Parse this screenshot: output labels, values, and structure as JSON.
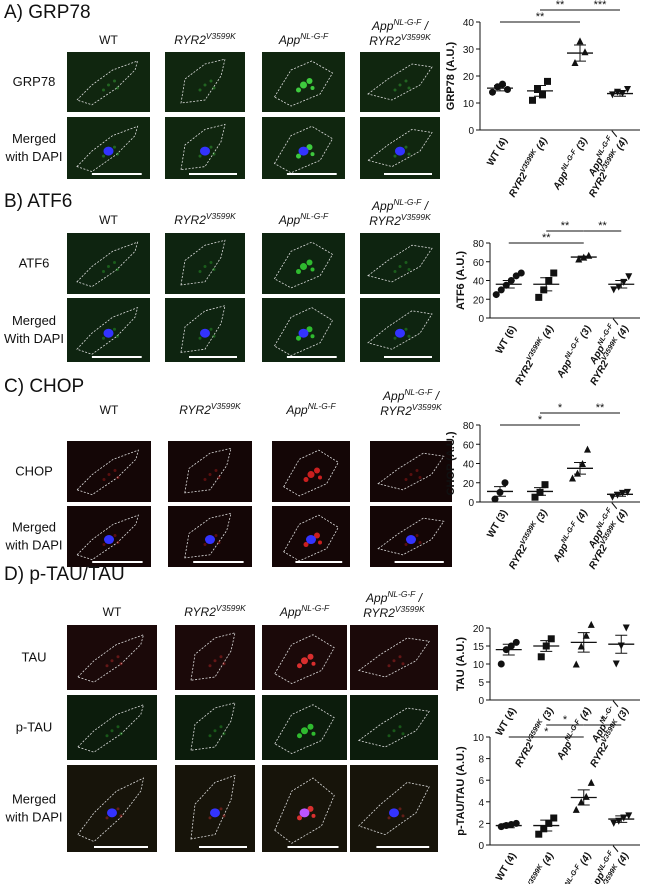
{
  "panels": [
    {
      "title": "A) GRP78",
      "columns": [
        [
          [
            {
              "text": "WT"
            }
          ]
        ],
        [
          [
            {
              "text": "RYR2"
            },
            {
              "sup": "V3599K"
            }
          ]
        ],
        [
          [
            {
              "text": "App"
            },
            {
              "sup": "NL-G-F"
            }
          ]
        ],
        [
          [
            {
              "text": "App"
            },
            {
              "sup": "NL-G-F"
            },
            {
              "text": " /"
            }
          ],
          [
            {
              "text": "RYR2"
            },
            {
              "sup": "V3599K"
            }
          ]
        ]
      ],
      "rows": [
        [
          "GRP78"
        ],
        [
          "Merged",
          "with DAPI"
        ]
      ]
    },
    {
      "title": "B) ATF6",
      "columns": [
        [
          [
            {
              "text": "WT"
            }
          ]
        ],
        [
          [
            {
              "text": "RYR2"
            },
            {
              "sup": "V3599K"
            }
          ]
        ],
        [
          [
            {
              "text": "App"
            },
            {
              "sup": "NL-G-F"
            }
          ]
        ],
        [
          [
            {
              "text": "App"
            },
            {
              "sup": "NL-G-F"
            },
            {
              "text": " /"
            }
          ],
          [
            {
              "text": "RYR2"
            },
            {
              "sup": "V3599K"
            }
          ]
        ]
      ],
      "rows": [
        [
          "ATF6"
        ],
        [
          "Merged",
          "With DAPI"
        ]
      ]
    },
    {
      "title": "C) CHOP",
      "columns": [
        [
          [
            {
              "text": "WT"
            }
          ]
        ],
        [
          [
            {
              "text": "RYR2"
            },
            {
              "sup": "V3599K"
            }
          ]
        ],
        [
          [
            {
              "text": "App"
            },
            {
              "sup": "NL-G-F"
            }
          ]
        ],
        [
          [
            {
              "text": "App"
            },
            {
              "sup": "NL-G-F"
            },
            {
              "text": " /"
            }
          ],
          [
            {
              "text": "RYR2"
            },
            {
              "sup": "V3599K"
            }
          ]
        ]
      ],
      "rows": [
        [
          "CHOP"
        ],
        [
          "Merged",
          "with DAPI"
        ]
      ]
    },
    {
      "title": "D) p-TAU/TAU",
      "columns": [
        [
          [
            {
              "text": "WT"
            }
          ]
        ],
        [
          [
            {
              "text": "RYR2"
            },
            {
              "sup": "V3599K"
            }
          ]
        ],
        [
          [
            {
              "text": "App"
            },
            {
              "sup": "NL-G-F"
            }
          ]
        ],
        [
          [
            {
              "text": "App"
            },
            {
              "sup": "NL-G-F"
            },
            {
              "text": " /"
            }
          ],
          [
            {
              "text": "RYR2"
            },
            {
              "sup": "V3599K"
            }
          ]
        ]
      ],
      "rows": [
        [
          "TAU"
        ],
        [
          "p-TAU"
        ],
        [
          "Merged",
          "with DAPI"
        ]
      ]
    }
  ],
  "chart_data": [
    {
      "type": "dot",
      "ylabel": "GRP78 (A.U.)",
      "ylim": [
        0,
        40
      ],
      "yticks": [
        0,
        10,
        20,
        30,
        40
      ],
      "categories": [
        [
          [
            {
              "text": "WT"
            },
            {
              "text": " (4)"
            }
          ]
        ],
        [
          [
            {
              "text": "RYR2"
            },
            {
              "sup": "V3599K"
            },
            {
              "text": " (4)"
            }
          ]
        ],
        [
          [
            {
              "text": "App"
            },
            {
              "sup": "NL-G-F"
            },
            {
              "text": " (3)"
            }
          ]
        ],
        [
          [
            {
              "text": "App"
            },
            {
              "sup": "NL-G-F"
            },
            {
              "text": " /"
            }
          ],
          [
            {
              "text": "RYR2"
            },
            {
              "sup": "V3599K"
            },
            {
              "text": " (4)"
            }
          ]
        ]
      ],
      "groups": [
        {
          "points": [
            14,
            16,
            17,
            15
          ],
          "mean": 15.5,
          "sem": 1
        },
        {
          "points": [
            11,
            15,
            13,
            18
          ],
          "mean": 14.5,
          "sem": 2
        },
        {
          "points": [
            25,
            33,
            29
          ],
          "mean": 28.5,
          "sem": 3
        },
        {
          "points": [
            13,
            14,
            13.5,
            15
          ],
          "mean": 13.5,
          "sem": 1
        }
      ],
      "significance": [
        {
          "between": [
            0,
            2
          ],
          "label": "**"
        },
        {
          "between": [
            1,
            2
          ],
          "label": "**"
        },
        {
          "between": [
            2,
            3
          ],
          "label": "***"
        }
      ]
    },
    {
      "type": "dot",
      "ylabel": "ATF6 (A.U.)",
      "ylim": [
        0,
        80
      ],
      "yticks": [
        0,
        20,
        40,
        60,
        80
      ],
      "categories": [
        [
          [
            {
              "text": "WT"
            },
            {
              "text": " (6)"
            }
          ]
        ],
        [
          [
            {
              "text": "RYR2"
            },
            {
              "sup": "V3599K"
            },
            {
              "text": " (4)"
            }
          ]
        ],
        [
          [
            {
              "text": "App"
            },
            {
              "sup": "NL-G-F"
            },
            {
              "text": " (3)"
            }
          ]
        ],
        [
          [
            {
              "text": "App"
            },
            {
              "sup": "NL-G-F"
            },
            {
              "text": " /"
            }
          ],
          [
            {
              "text": "RYR2"
            },
            {
              "sup": "V3599K"
            },
            {
              "text": " (4)"
            }
          ]
        ]
      ],
      "groups": [
        {
          "points": [
            25,
            30,
            35,
            40,
            45,
            48
          ],
          "mean": 36,
          "sem": 4
        },
        {
          "points": [
            22,
            30,
            40,
            48
          ],
          "mean": 36,
          "sem": 7
        },
        {
          "points": [
            63,
            65,
            67
          ],
          "mean": 65,
          "sem": 1
        },
        {
          "points": [
            30,
            33,
            38,
            44
          ],
          "mean": 36,
          "sem": 4
        }
      ],
      "significance": [
        {
          "between": [
            0,
            2
          ],
          "label": "**"
        },
        {
          "between": [
            1,
            2
          ],
          "label": "**"
        },
        {
          "between": [
            2,
            3
          ],
          "label": "**"
        }
      ]
    },
    {
      "type": "dot",
      "ylabel": "CHOP (A.U.)",
      "ylim": [
        0,
        80
      ],
      "yticks": [
        0,
        20,
        40,
        60,
        80
      ],
      "categories": [
        [
          [
            {
              "text": "WT"
            },
            {
              "text": " (3)"
            }
          ]
        ],
        [
          [
            {
              "text": "RYR2"
            },
            {
              "sup": "V3599K"
            },
            {
              "text": " (3)"
            }
          ]
        ],
        [
          [
            {
              "text": "App"
            },
            {
              "sup": "NL-G-F"
            },
            {
              "text": " (4)"
            }
          ]
        ],
        [
          [
            {
              "text": "App"
            },
            {
              "sup": "NL-G-F"
            },
            {
              "text": " /"
            }
          ],
          [
            {
              "text": "RYR2"
            },
            {
              "sup": "V3599K"
            },
            {
              "text": " (4)"
            }
          ]
        ]
      ],
      "groups": [
        {
          "points": [
            3,
            10,
            20
          ],
          "mean": 11,
          "sem": 5
        },
        {
          "points": [
            5,
            10,
            18
          ],
          "mean": 11,
          "sem": 4
        },
        {
          "points": [
            25,
            30,
            40,
            55
          ],
          "mean": 35,
          "sem": 6
        },
        {
          "points": [
            5,
            7,
            9,
            10
          ],
          "mean": 8,
          "sem": 2
        }
      ],
      "significance": [
        {
          "between": [
            0,
            2
          ],
          "label": "*"
        },
        {
          "between": [
            1,
            2
          ],
          "label": "*"
        },
        {
          "between": [
            2,
            3
          ],
          "label": "**"
        }
      ]
    },
    {
      "type": "dot",
      "ylabel": "TAU (A.U.)",
      "ylim": [
        0,
        20
      ],
      "yticks": [
        0,
        5,
        10,
        15,
        20
      ],
      "categories": [
        [
          [
            {
              "text": "WT"
            },
            {
              "text": " (4)"
            }
          ]
        ],
        [
          [
            {
              "text": "RYR2"
            },
            {
              "sup": "V3599K"
            },
            {
              "text": " (3)"
            }
          ]
        ],
        [
          [
            {
              "text": "App"
            },
            {
              "sup": "NL-G-F"
            },
            {
              "text": " (4)"
            }
          ]
        ],
        [
          [
            {
              "text": "App"
            },
            {
              "sup": "NL-G-"
            },
            {
              "text": " /"
            }
          ],
          [
            {
              "text": "RYR2"
            },
            {
              "sup": "V3599K"
            },
            {
              "text": " (3)"
            }
          ]
        ]
      ],
      "groups": [
        {
          "points": [
            10,
            14,
            15,
            16
          ],
          "mean": 14,
          "sem": 1.5
        },
        {
          "points": [
            12,
            15,
            17
          ],
          "mean": 15,
          "sem": 1.5
        },
        {
          "points": [
            10,
            15,
            18,
            21
          ],
          "mean": 16,
          "sem": 2.7
        },
        {
          "points": [
            10,
            15,
            20
          ],
          "mean": 15.5,
          "sem": 2.5
        }
      ],
      "significance": []
    },
    {
      "type": "dot",
      "ylabel": "p-TAU/TAU (A.U.)",
      "ylim": [
        0,
        10
      ],
      "yticks": [
        0,
        2,
        4,
        6,
        8,
        10
      ],
      "categories": [
        [
          [
            {
              "text": "WT"
            },
            {
              "text": " (4)"
            }
          ]
        ],
        [
          [
            {
              "text": "RYR2"
            },
            {
              "sup": "V3599K"
            },
            {
              "text": " (4)"
            }
          ]
        ],
        [
          [
            {
              "text": "App"
            },
            {
              "sup": "NL-G-F"
            },
            {
              "text": " (4)"
            }
          ]
        ],
        [
          [
            {
              "text": "App"
            },
            {
              "sup": "NL-G-F"
            },
            {
              "text": " /"
            }
          ],
          [
            {
              "text": "RYR2"
            },
            {
              "sup": "V3599K"
            },
            {
              "text": " (4)"
            }
          ]
        ]
      ],
      "groups": [
        {
          "points": [
            1.7,
            1.8,
            1.9,
            2
          ],
          "mean": 1.8,
          "sem": 0.2
        },
        {
          "points": [
            1,
            1.5,
            2,
            2.5
          ],
          "mean": 1.8,
          "sem": 0.5
        },
        {
          "points": [
            3.3,
            4,
            4.5,
            5.8
          ],
          "mean": 4.4,
          "sem": 0.7
        },
        {
          "points": [
            2,
            2.2,
            2.5,
            2.7
          ],
          "mean": 2.4,
          "sem": 0.3
        }
      ],
      "significance": [
        {
          "between": [
            0,
            2
          ],
          "label": "*"
        },
        {
          "between": [
            1,
            2
          ],
          "label": "*"
        },
        {
          "between": [
            2,
            3
          ],
          "label": "*"
        }
      ]
    }
  ]
}
